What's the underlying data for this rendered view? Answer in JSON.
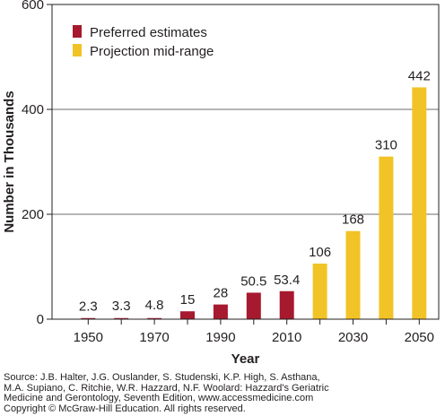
{
  "chart_data": {
    "type": "bar",
    "xlabel": "Year",
    "ylabel": "Number in Thousands",
    "ylim": [
      0,
      600
    ],
    "yticks": [
      0,
      200,
      400,
      600
    ],
    "xtick_labels": [
      "1950",
      "1970",
      "1990",
      "2010",
      "2030",
      "2050"
    ],
    "grid": "horizontal",
    "legend_position": "top-left",
    "categories": [
      "1950",
      "1960",
      "1970",
      "1980",
      "1990",
      "2000",
      "2010",
      "2020",
      "2030",
      "2040",
      "2050"
    ],
    "values": [
      2.3,
      3.3,
      4.8,
      15,
      28,
      50.5,
      53.4,
      106,
      168,
      310,
      442
    ],
    "value_labels": [
      "2.3",
      "3.3",
      "4.8",
      "15",
      "28",
      "50.5",
      "53.4",
      "106",
      "168",
      "310",
      "442"
    ],
    "bar_series": [
      0,
      0,
      0,
      1,
      1,
      1,
      1,
      2,
      2,
      2,
      2
    ],
    "series": [
      {
        "name": "Preferred estimates",
        "color": "#a6192e"
      },
      {
        "name": "Projection mid-range",
        "color": "#f2c326"
      }
    ]
  },
  "source_lines": [
    "Source: J.B. Halter, J.G. Ouslander, S. Studenski, K.P. High, S. Asthana,",
    "M.A. Supiano, C. Ritchie, W.R. Hazzard, N.F. Woolard: Hazzard's Geriatric",
    "Medicine and Gerontology, Seventh Edition, www.accessmedicine.com",
    "Copyright © McGraw-Hill Education. All rights reserved."
  ]
}
